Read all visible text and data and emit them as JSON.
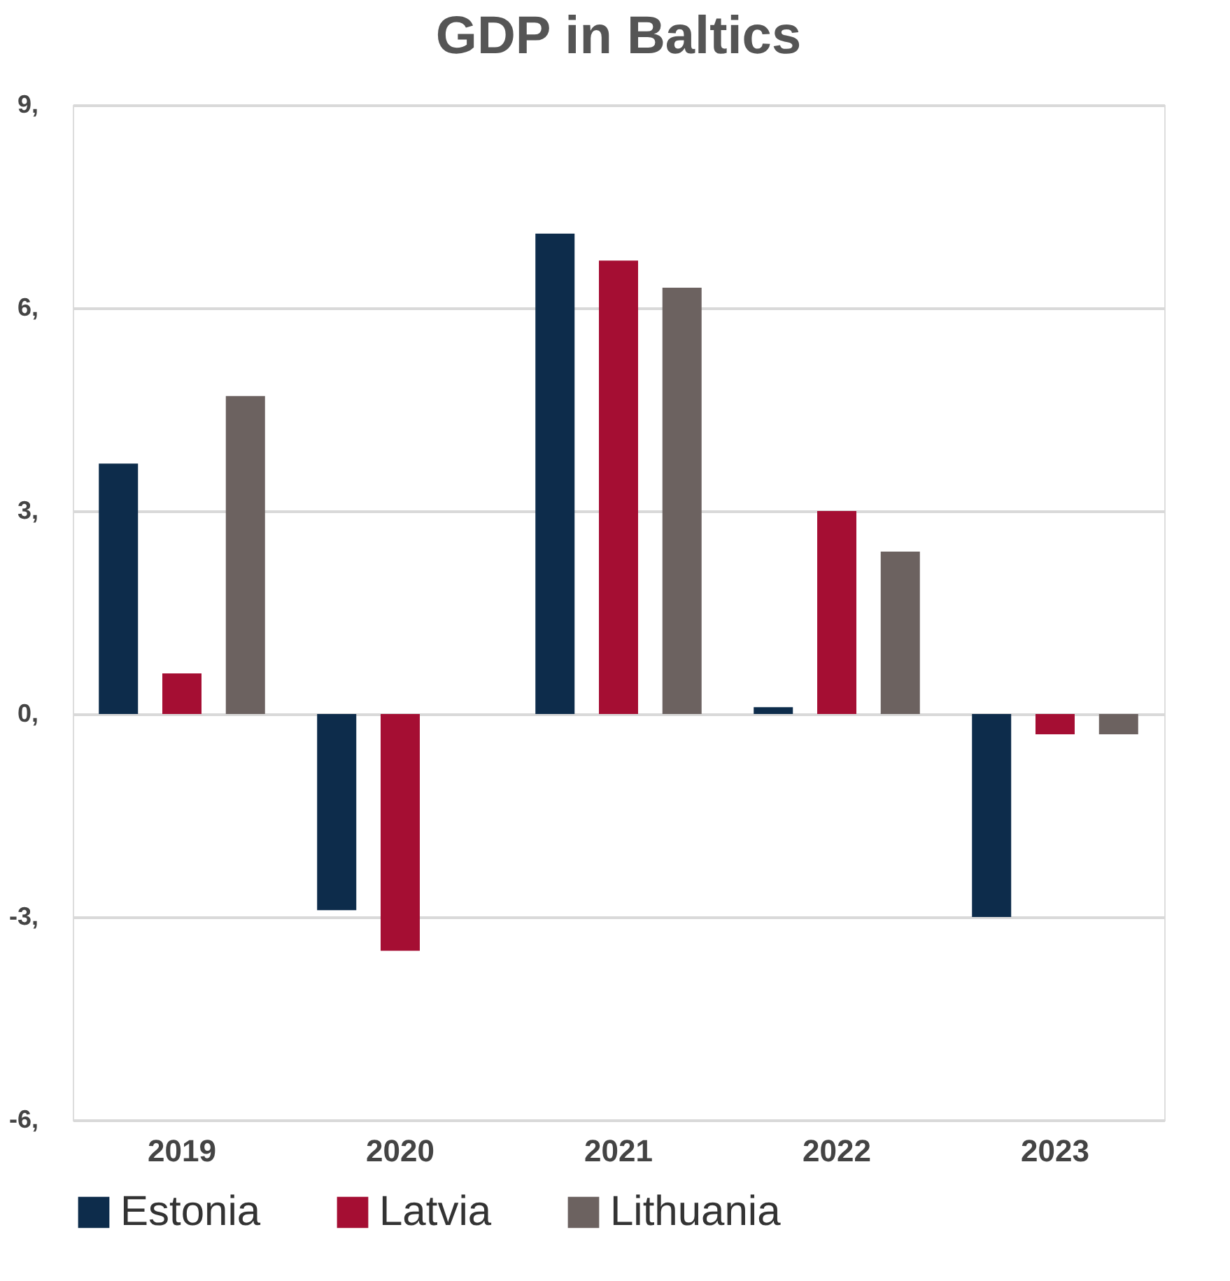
{
  "chart_data": {
    "type": "bar",
    "title": "GDP  in Baltics",
    "categories": [
      "2019",
      "2020",
      "2021",
      "2022",
      "2023"
    ],
    "series": [
      {
        "name": "Estonia",
        "color": "#0d2c4b",
        "values": [
          3.7,
          -2.9,
          7.1,
          0.1,
          -3.0
        ]
      },
      {
        "name": "Latvia",
        "color": "#a50e33",
        "values": [
          0.6,
          -3.5,
          6.7,
          3.0,
          -0.3
        ]
      },
      {
        "name": "Lithuania",
        "color": "#6c6260",
        "values": [
          4.7,
          0.0,
          6.3,
          2.4,
          -0.3
        ]
      }
    ],
    "ylim": [
      -6,
      9
    ],
    "yticks": [
      {
        "value": -6,
        "label": "-6,"
      },
      {
        "value": -3,
        "label": "-3,"
      },
      {
        "value": 0,
        "label": "0,"
      },
      {
        "value": 3,
        "label": "3,"
      },
      {
        "value": 6,
        "label": "6,"
      },
      {
        "value": 9,
        "label": "9,"
      }
    ],
    "grid": "y",
    "legend": "bottom"
  }
}
